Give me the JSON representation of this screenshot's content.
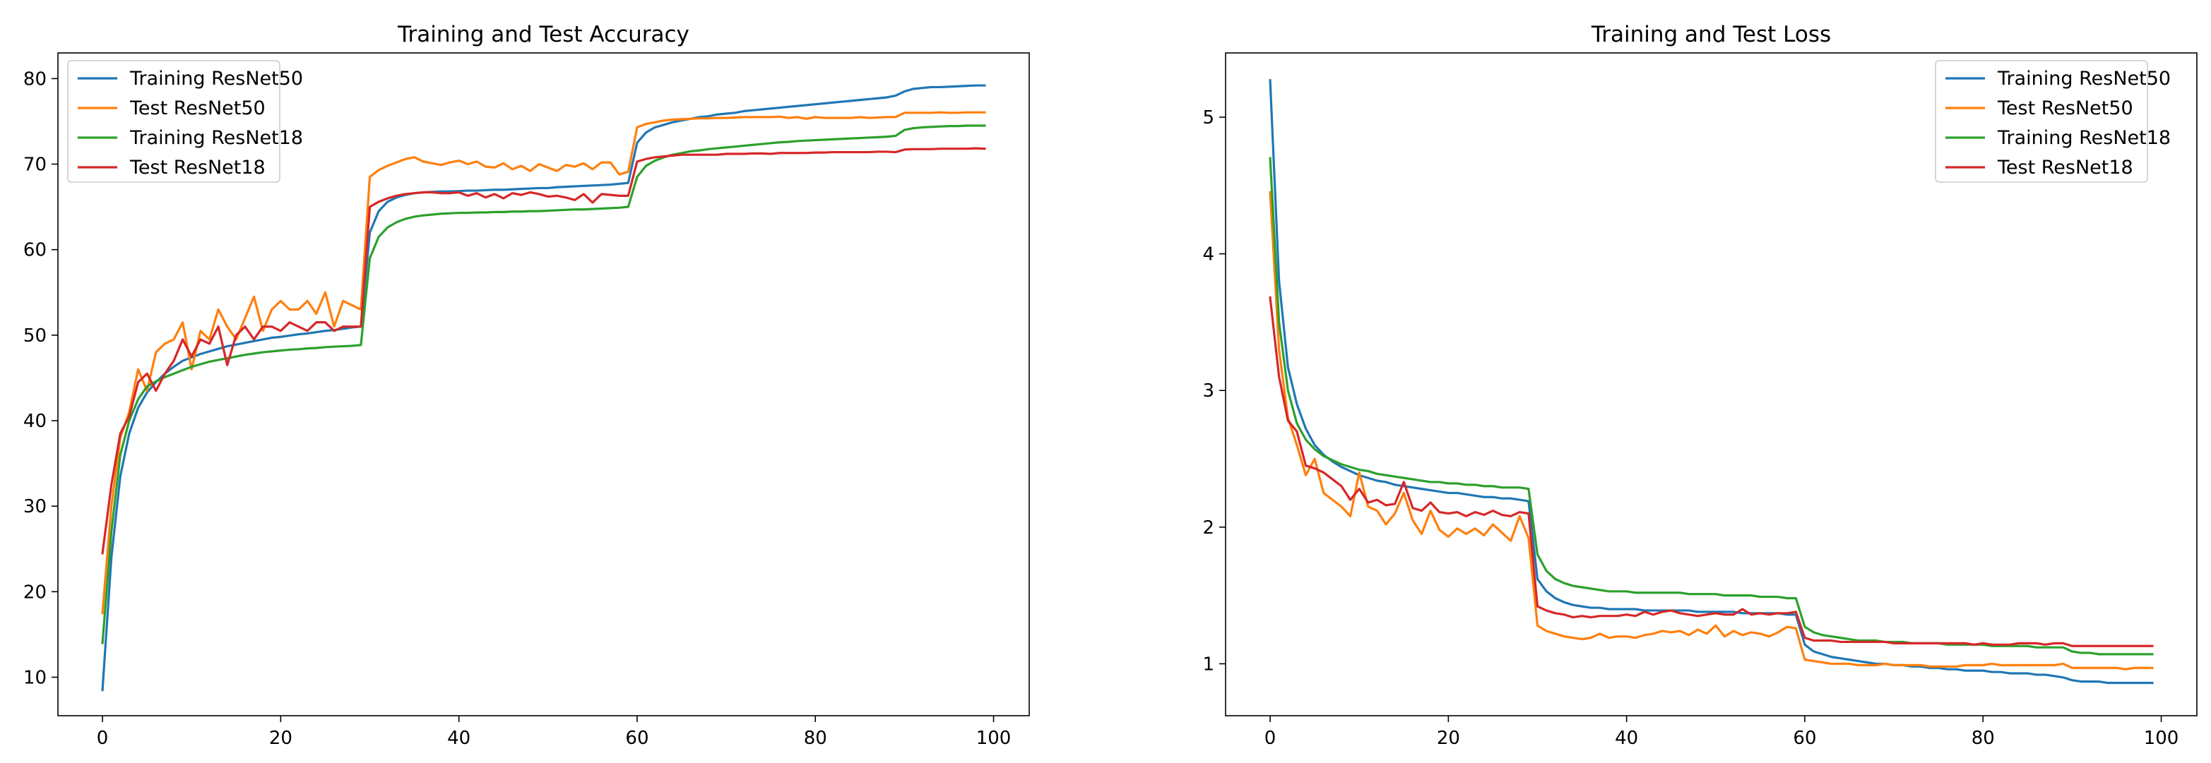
{
  "chart_data": [
    {
      "type": "line",
      "title": "Training and Test Accuracy",
      "xlabel": "",
      "ylabel": "",
      "xlim": [
        -5,
        104
      ],
      "ylim": [
        5.5,
        83
      ],
      "xticks": [
        0,
        20,
        40,
        60,
        80,
        100
      ],
      "yticks": [
        10,
        20,
        30,
        40,
        50,
        60,
        70,
        80
      ],
      "grid": false,
      "legend_position": "top-left",
      "x": [
        0,
        1,
        2,
        3,
        4,
        5,
        6,
        7,
        8,
        9,
        10,
        11,
        12,
        13,
        14,
        15,
        16,
        17,
        18,
        19,
        20,
        21,
        22,
        23,
        24,
        25,
        26,
        27,
        28,
        29,
        30,
        31,
        32,
        33,
        34,
        35,
        36,
        37,
        38,
        39,
        40,
        41,
        42,
        43,
        44,
        45,
        46,
        47,
        48,
        49,
        50,
        51,
        52,
        53,
        54,
        55,
        56,
        57,
        58,
        59,
        60,
        61,
        62,
        63,
        64,
        65,
        66,
        67,
        68,
        69,
        70,
        71,
        72,
        73,
        74,
        75,
        76,
        77,
        78,
        79,
        80,
        81,
        82,
        83,
        84,
        85,
        86,
        87,
        88,
        89,
        90,
        91,
        92,
        93,
        94,
        95,
        96,
        97,
        98,
        99
      ],
      "series": [
        {
          "name": "Training ResNet50",
          "color": "#1f77b4",
          "values": [
            8.5,
            24,
            33.5,
            38.5,
            41.5,
            43.3,
            44.5,
            45.5,
            46.3,
            47,
            47.4,
            47.8,
            48.1,
            48.4,
            48.7,
            48.9,
            49.1,
            49.3,
            49.5,
            49.7,
            49.8,
            49.95,
            50.1,
            50.2,
            50.35,
            50.5,
            50.6,
            50.75,
            50.9,
            51,
            62,
            64.5,
            65.6,
            66.1,
            66.4,
            66.6,
            66.7,
            66.75,
            66.8,
            66.8,
            66.85,
            66.9,
            66.9,
            66.95,
            67,
            67,
            67.05,
            67.1,
            67.15,
            67.2,
            67.2,
            67.3,
            67.35,
            67.4,
            67.45,
            67.5,
            67.55,
            67.6,
            67.7,
            67.8,
            72.5,
            73.7,
            74.3,
            74.6,
            74.9,
            75.1,
            75.3,
            75.5,
            75.6,
            75.8,
            75.9,
            76,
            76.2,
            76.3,
            76.4,
            76.5,
            76.6,
            76.7,
            76.8,
            76.9,
            77,
            77.1,
            77.2,
            77.3,
            77.4,
            77.5,
            77.6,
            77.7,
            77.8,
            78,
            78.5,
            78.8,
            78.9,
            79,
            79,
            79.05,
            79.1,
            79.15,
            79.2,
            79.2
          ]
        },
        {
          "name": "Test ResNet50",
          "color": "#ff7f0e",
          "values": [
            17.5,
            30,
            38,
            41,
            46,
            43.5,
            48,
            49,
            49.5,
            51.5,
            46,
            50.5,
            49.5,
            53,
            51,
            49.5,
            52,
            54.5,
            50.5,
            53,
            54,
            53,
            53,
            54,
            52.5,
            55,
            51,
            54,
            53.5,
            53,
            68.5,
            69.3,
            69.8,
            70.2,
            70.6,
            70.8,
            70.3,
            70.1,
            69.9,
            70.2,
            70.4,
            70,
            70.3,
            69.7,
            69.6,
            70.1,
            69.4,
            69.8,
            69.2,
            70,
            69.6,
            69.2,
            69.9,
            69.7,
            70.1,
            69.4,
            70.2,
            70.2,
            68.8,
            69.1,
            74.3,
            74.7,
            74.9,
            75.1,
            75.2,
            75.25,
            75.3,
            75.35,
            75.35,
            75.4,
            75.4,
            75.45,
            75.5,
            75.5,
            75.5,
            75.5,
            75.55,
            75.4,
            75.5,
            75.3,
            75.5,
            75.4,
            75.4,
            75.4,
            75.4,
            75.5,
            75.4,
            75.45,
            75.5,
            75.5,
            76,
            76,
            76,
            76,
            76.05,
            76,
            76,
            76.05,
            76.05,
            76.05
          ]
        },
        {
          "name": "Training ResNet18",
          "color": "#2ca02c",
          "values": [
            14,
            27,
            36,
            40,
            42.5,
            44,
            44.6,
            45.1,
            45.5,
            45.9,
            46.3,
            46.6,
            46.9,
            47.1,
            47.3,
            47.5,
            47.7,
            47.85,
            48,
            48.1,
            48.2,
            48.3,
            48.35,
            48.45,
            48.5,
            48.6,
            48.65,
            48.7,
            48.75,
            48.85,
            59,
            61.5,
            62.6,
            63.2,
            63.6,
            63.85,
            64,
            64.1,
            64.2,
            64.25,
            64.3,
            64.3,
            64.35,
            64.35,
            64.4,
            64.4,
            64.45,
            64.45,
            64.5,
            64.5,
            64.55,
            64.6,
            64.65,
            64.7,
            64.7,
            64.75,
            64.8,
            64.85,
            64.9,
            65,
            68.5,
            69.8,
            70.4,
            70.8,
            71.1,
            71.3,
            71.5,
            71.6,
            71.75,
            71.85,
            71.95,
            72.05,
            72.15,
            72.25,
            72.35,
            72.45,
            72.55,
            72.6,
            72.7,
            72.75,
            72.8,
            72.85,
            72.9,
            72.95,
            73,
            73.05,
            73.1,
            73.15,
            73.2,
            73.3,
            74,
            74.2,
            74.3,
            74.35,
            74.4,
            74.45,
            74.45,
            74.5,
            74.5,
            74.5
          ]
        },
        {
          "name": "Test ResNet18",
          "color": "#d62728",
          "values": [
            24.5,
            32.5,
            38.5,
            40.5,
            44.5,
            45.5,
            43.5,
            45.5,
            47,
            49.5,
            47.5,
            49.5,
            49,
            51,
            46.5,
            50,
            51,
            49.5,
            51,
            51,
            50.5,
            51.5,
            51,
            50.5,
            51.5,
            51.5,
            50.5,
            51,
            51,
            51,
            65,
            65.6,
            66,
            66.3,
            66.5,
            66.6,
            66.7,
            66.7,
            66.6,
            66.6,
            66.7,
            66.3,
            66.6,
            66.1,
            66.5,
            66,
            66.6,
            66.4,
            66.7,
            66.5,
            66.2,
            66.3,
            66.1,
            65.8,
            66.5,
            65.5,
            66.5,
            66.4,
            66.3,
            66.3,
            70.3,
            70.6,
            70.8,
            70.9,
            71,
            71.1,
            71.1,
            71.1,
            71.1,
            71.1,
            71.2,
            71.2,
            71.2,
            71.25,
            71.25,
            71.2,
            71.3,
            71.3,
            71.3,
            71.3,
            71.35,
            71.35,
            71.4,
            71.4,
            71.4,
            71.4,
            71.4,
            71.45,
            71.45,
            71.4,
            71.7,
            71.75,
            71.75,
            71.75,
            71.8,
            71.8,
            71.8,
            71.8,
            71.85,
            71.8
          ]
        }
      ]
    },
    {
      "type": "line",
      "title": "Training and Test Loss",
      "xlabel": "",
      "ylabel": "",
      "xlim": [
        -5,
        104
      ],
      "ylim": [
        0.62,
        5.47
      ],
      "xticks": [
        0,
        20,
        40,
        60,
        80,
        100
      ],
      "yticks": [
        1,
        2,
        3,
        4,
        5
      ],
      "grid": false,
      "legend_position": "top-right",
      "x": [
        0,
        1,
        2,
        3,
        4,
        5,
        6,
        7,
        8,
        9,
        10,
        11,
        12,
        13,
        14,
        15,
        16,
        17,
        18,
        19,
        20,
        21,
        22,
        23,
        24,
        25,
        26,
        27,
        28,
        29,
        30,
        31,
        32,
        33,
        34,
        35,
        36,
        37,
        38,
        39,
        40,
        41,
        42,
        43,
        44,
        45,
        46,
        47,
        48,
        49,
        50,
        51,
        52,
        53,
        54,
        55,
        56,
        57,
        58,
        59,
        60,
        61,
        62,
        63,
        64,
        65,
        66,
        67,
        68,
        69,
        70,
        71,
        72,
        73,
        74,
        75,
        76,
        77,
        78,
        79,
        80,
        81,
        82,
        83,
        84,
        85,
        86,
        87,
        88,
        89,
        90,
        91,
        92,
        93,
        94,
        95,
        96,
        97,
        98,
        99
      ],
      "series": [
        {
          "name": "Training ResNet50",
          "color": "#1f77b4",
          "values": [
            5.27,
            3.8,
            3.17,
            2.9,
            2.72,
            2.6,
            2.53,
            2.48,
            2.44,
            2.41,
            2.38,
            2.36,
            2.34,
            2.33,
            2.31,
            2.3,
            2.29,
            2.28,
            2.27,
            2.26,
            2.25,
            2.25,
            2.24,
            2.23,
            2.22,
            2.22,
            2.21,
            2.21,
            2.2,
            2.19,
            1.62,
            1.53,
            1.48,
            1.45,
            1.43,
            1.42,
            1.41,
            1.41,
            1.4,
            1.4,
            1.4,
            1.4,
            1.39,
            1.39,
            1.39,
            1.39,
            1.39,
            1.39,
            1.38,
            1.38,
            1.38,
            1.38,
            1.38,
            1.37,
            1.37,
            1.37,
            1.37,
            1.37,
            1.36,
            1.36,
            1.14,
            1.09,
            1.07,
            1.05,
            1.04,
            1.03,
            1.02,
            1.01,
            1,
            1,
            0.99,
            0.99,
            0.98,
            0.98,
            0.97,
            0.97,
            0.96,
            0.96,
            0.95,
            0.95,
            0.95,
            0.94,
            0.94,
            0.93,
            0.93,
            0.93,
            0.92,
            0.92,
            0.91,
            0.9,
            0.88,
            0.87,
            0.87,
            0.87,
            0.86,
            0.86,
            0.86,
            0.86,
            0.86,
            0.86
          ]
        },
        {
          "name": "Test ResNet50",
          "color": "#ff7f0e",
          "values": [
            4.45,
            3.3,
            2.8,
            2.6,
            2.38,
            2.5,
            2.25,
            2.2,
            2.15,
            2.08,
            2.4,
            2.15,
            2.12,
            2.02,
            2.1,
            2.25,
            2.05,
            1.95,
            2.12,
            1.98,
            1.93,
            1.99,
            1.95,
            1.99,
            1.94,
            2.02,
            1.96,
            1.9,
            2.08,
            1.92,
            1.28,
            1.24,
            1.22,
            1.2,
            1.19,
            1.18,
            1.19,
            1.22,
            1.19,
            1.2,
            1.2,
            1.19,
            1.21,
            1.22,
            1.24,
            1.23,
            1.24,
            1.21,
            1.25,
            1.22,
            1.28,
            1.2,
            1.24,
            1.21,
            1.23,
            1.22,
            1.2,
            1.23,
            1.27,
            1.26,
            1.03,
            1.02,
            1.01,
            1,
            1,
            1,
            0.99,
            0.99,
            0.99,
            1,
            0.99,
            0.99,
            0.99,
            0.99,
            0.98,
            0.98,
            0.98,
            0.98,
            0.99,
            0.99,
            0.99,
            1,
            0.99,
            0.99,
            0.99,
            0.99,
            0.99,
            0.99,
            0.99,
            1,
            0.97,
            0.97,
            0.97,
            0.97,
            0.97,
            0.97,
            0.96,
            0.97,
            0.97,
            0.97
          ]
        },
        {
          "name": "Training ResNet18",
          "color": "#2ca02c",
          "values": [
            4.7,
            3.5,
            3.0,
            2.76,
            2.64,
            2.57,
            2.52,
            2.49,
            2.46,
            2.44,
            2.42,
            2.41,
            2.39,
            2.38,
            2.37,
            2.36,
            2.35,
            2.34,
            2.33,
            2.33,
            2.32,
            2.32,
            2.31,
            2.31,
            2.3,
            2.3,
            2.29,
            2.29,
            2.29,
            2.28,
            1.8,
            1.68,
            1.62,
            1.59,
            1.57,
            1.56,
            1.55,
            1.54,
            1.53,
            1.53,
            1.53,
            1.52,
            1.52,
            1.52,
            1.52,
            1.52,
            1.52,
            1.51,
            1.51,
            1.51,
            1.51,
            1.5,
            1.5,
            1.5,
            1.5,
            1.49,
            1.49,
            1.49,
            1.48,
            1.48,
            1.27,
            1.23,
            1.21,
            1.2,
            1.19,
            1.18,
            1.17,
            1.17,
            1.17,
            1.16,
            1.16,
            1.16,
            1.15,
            1.15,
            1.15,
            1.15,
            1.14,
            1.14,
            1.14,
            1.14,
            1.14,
            1.13,
            1.13,
            1.13,
            1.13,
            1.13,
            1.12,
            1.12,
            1.12,
            1.12,
            1.09,
            1.08,
            1.08,
            1.07,
            1.07,
            1.07,
            1.07,
            1.07,
            1.07,
            1.07
          ]
        },
        {
          "name": "Test ResNet18",
          "color": "#d62728",
          "values": [
            3.68,
            3.1,
            2.78,
            2.7,
            2.45,
            2.43,
            2.4,
            2.35,
            2.3,
            2.2,
            2.28,
            2.18,
            2.2,
            2.16,
            2.17,
            2.33,
            2.14,
            2.12,
            2.18,
            2.11,
            2.1,
            2.11,
            2.08,
            2.11,
            2.09,
            2.12,
            2.09,
            2.08,
            2.11,
            2.1,
            1.42,
            1.39,
            1.37,
            1.36,
            1.34,
            1.35,
            1.34,
            1.35,
            1.35,
            1.35,
            1.36,
            1.35,
            1.38,
            1.36,
            1.38,
            1.39,
            1.37,
            1.36,
            1.35,
            1.36,
            1.37,
            1.36,
            1.36,
            1.4,
            1.36,
            1.37,
            1.36,
            1.37,
            1.37,
            1.38,
            1.19,
            1.17,
            1.17,
            1.17,
            1.16,
            1.16,
            1.16,
            1.16,
            1.16,
            1.16,
            1.15,
            1.15,
            1.15,
            1.15,
            1.15,
            1.15,
            1.15,
            1.15,
            1.15,
            1.14,
            1.15,
            1.14,
            1.14,
            1.14,
            1.15,
            1.15,
            1.15,
            1.14,
            1.15,
            1.15,
            1.13,
            1.13,
            1.13,
            1.13,
            1.13,
            1.13,
            1.13,
            1.13,
            1.13,
            1.13
          ]
        }
      ]
    }
  ]
}
